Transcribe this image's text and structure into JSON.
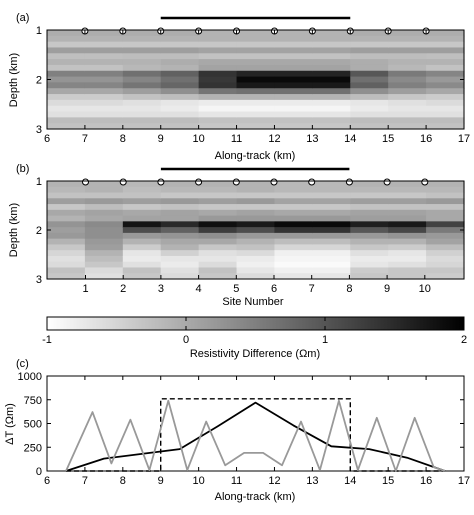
{
  "chart_data": [
    {
      "panel_label": "(a)",
      "type": "heatmap",
      "xlabel": "Along-track (km)",
      "ylabel": "Depth (km)",
      "xlim": [
        6,
        17
      ],
      "ylim": [
        3,
        1
      ],
      "xticks": [
        6,
        7,
        8,
        9,
        10,
        11,
        12,
        13,
        14,
        15,
        16,
        17
      ],
      "yticks": [
        1,
        2,
        3
      ],
      "site_markers_x": [
        7,
        8,
        9,
        10,
        11,
        12,
        13,
        14,
        15,
        16
      ],
      "bar_x": [
        9,
        14
      ],
      "heatmap_columns": [
        [
          0.32,
          0.3,
          0.22,
          0.38,
          0.25,
          0.3,
          0.24,
          0.5,
          0.42,
          0.48,
          0.34,
          0.2,
          0.14,
          0.1,
          0.12,
          0.26,
          0.24
        ],
        [
          0.32,
          0.3,
          0.22,
          0.38,
          0.25,
          0.3,
          0.24,
          0.5,
          0.42,
          0.48,
          0.34,
          0.2,
          0.14,
          0.1,
          0.12,
          0.26,
          0.24
        ],
        [
          0.32,
          0.3,
          0.22,
          0.38,
          0.26,
          0.3,
          0.28,
          0.56,
          0.48,
          0.54,
          0.38,
          0.24,
          0.12,
          0.1,
          0.12,
          0.26,
          0.24
        ],
        [
          0.32,
          0.3,
          0.22,
          0.38,
          0.26,
          0.32,
          0.3,
          0.62,
          0.56,
          0.6,
          0.44,
          0.26,
          0.1,
          0.08,
          0.12,
          0.26,
          0.24
        ],
        [
          0.3,
          0.3,
          0.22,
          0.36,
          0.24,
          0.34,
          0.36,
          0.8,
          0.78,
          0.8,
          0.54,
          0.3,
          0.08,
          0.04,
          0.1,
          0.24,
          0.22
        ],
        [
          0.3,
          0.3,
          0.22,
          0.36,
          0.24,
          0.34,
          0.36,
          0.86,
          0.96,
          0.9,
          0.56,
          0.3,
          0.08,
          0.04,
          0.1,
          0.24,
          0.22
        ],
        [
          0.3,
          0.3,
          0.22,
          0.36,
          0.24,
          0.34,
          0.36,
          0.86,
          0.96,
          0.9,
          0.56,
          0.3,
          0.08,
          0.04,
          0.1,
          0.24,
          0.22
        ],
        [
          0.3,
          0.3,
          0.22,
          0.36,
          0.24,
          0.34,
          0.36,
          0.86,
          0.96,
          0.9,
          0.56,
          0.3,
          0.08,
          0.04,
          0.1,
          0.24,
          0.22
        ],
        [
          0.32,
          0.3,
          0.22,
          0.38,
          0.26,
          0.32,
          0.32,
          0.66,
          0.56,
          0.62,
          0.44,
          0.26,
          0.1,
          0.08,
          0.12,
          0.26,
          0.24
        ],
        [
          0.32,
          0.3,
          0.22,
          0.38,
          0.26,
          0.3,
          0.28,
          0.52,
          0.46,
          0.5,
          0.38,
          0.22,
          0.12,
          0.1,
          0.12,
          0.26,
          0.24
        ],
        [
          0.32,
          0.3,
          0.22,
          0.38,
          0.25,
          0.3,
          0.24,
          0.48,
          0.4,
          0.46,
          0.34,
          0.2,
          0.14,
          0.1,
          0.12,
          0.26,
          0.24
        ]
      ]
    },
    {
      "panel_label": "(b)",
      "type": "heatmap",
      "xlabel": "Site Number",
      "ylabel": "Depth (km)",
      "ylim": [
        3,
        1
      ],
      "xticks": [
        1,
        2,
        3,
        4,
        5,
        6,
        7,
        8,
        9,
        10
      ],
      "yticks": [
        1,
        2,
        3
      ],
      "site_markers_x": [
        1,
        2,
        3,
        4,
        5,
        6,
        7,
        8,
        9,
        10
      ],
      "bar_x": [
        3,
        8
      ],
      "heatmap_columns": [
        [
          0.3,
          0.28,
          0.24,
          0.38,
          0.22,
          0.34,
          0.3,
          0.42,
          0.38,
          0.4,
          0.3,
          0.22,
          0.16,
          0.12,
          0.14,
          0.24,
          0.22
        ],
        [
          0.3,
          0.3,
          0.24,
          0.4,
          0.26,
          0.36,
          0.34,
          0.46,
          0.44,
          0.44,
          0.4,
          0.38,
          0.3,
          0.26,
          0.22,
          0.14,
          0.12
        ],
        [
          0.28,
          0.26,
          0.24,
          0.38,
          0.22,
          0.34,
          0.36,
          0.92,
          0.7,
          0.4,
          0.3,
          0.2,
          0.1,
          0.08,
          0.12,
          0.24,
          0.22
        ],
        [
          0.3,
          0.28,
          0.22,
          0.4,
          0.24,
          0.36,
          0.36,
          0.84,
          0.62,
          0.42,
          0.34,
          0.3,
          0.18,
          0.1,
          0.08,
          0.12,
          0.14
        ],
        [
          0.3,
          0.28,
          0.22,
          0.38,
          0.22,
          0.34,
          0.4,
          0.94,
          0.76,
          0.44,
          0.34,
          0.22,
          0.12,
          0.1,
          0.14,
          0.24,
          0.22
        ],
        [
          0.3,
          0.3,
          0.22,
          0.4,
          0.22,
          0.36,
          0.4,
          0.9,
          0.7,
          0.4,
          0.3,
          0.24,
          0.14,
          0.08,
          0.06,
          0.1,
          0.14
        ],
        [
          0.28,
          0.28,
          0.22,
          0.36,
          0.22,
          0.34,
          0.4,
          0.96,
          0.8,
          0.4,
          0.26,
          0.16,
          0.06,
          0.04,
          0.02,
          0.06,
          0.1
        ],
        [
          0.28,
          0.28,
          0.22,
          0.36,
          0.22,
          0.34,
          0.4,
          0.96,
          0.8,
          0.4,
          0.26,
          0.16,
          0.06,
          0.04,
          0.02,
          0.06,
          0.1
        ],
        [
          0.3,
          0.28,
          0.22,
          0.38,
          0.24,
          0.36,
          0.38,
          0.88,
          0.66,
          0.4,
          0.3,
          0.22,
          0.12,
          0.08,
          0.1,
          0.2,
          0.22
        ],
        [
          0.3,
          0.28,
          0.22,
          0.38,
          0.24,
          0.36,
          0.38,
          0.9,
          0.72,
          0.42,
          0.3,
          0.2,
          0.1,
          0.08,
          0.12,
          0.22,
          0.22
        ],
        [
          0.3,
          0.28,
          0.24,
          0.4,
          0.24,
          0.34,
          0.34,
          0.74,
          0.52,
          0.4,
          0.36,
          0.26,
          0.18,
          0.14,
          0.16,
          0.22,
          0.2
        ]
      ]
    },
    {
      "type": "colorbar",
      "label": "Resistivity Difference (Ωm)",
      "range": [
        -1,
        2
      ],
      "ticks": [
        -1,
        0,
        1,
        2
      ]
    },
    {
      "panel_label": "(c)",
      "type": "line",
      "xlabel": "Along-track (km)",
      "ylabel": "ΔT (Ωm)",
      "xlim": [
        6,
        17
      ],
      "ylim": [
        0,
        1000
      ],
      "xticks": [
        6,
        7,
        8,
        9,
        10,
        11,
        12,
        13,
        14,
        15,
        16,
        17
      ],
      "yticks": [
        0,
        250,
        500,
        750,
        1000
      ],
      "series": [
        {
          "color": "#000000",
          "dash": true,
          "width": 1.4,
          "x": [
            6.5,
            9.0,
            9.0,
            14.0,
            14.0,
            16.5
          ],
          "y": [
            0,
            0,
            760,
            760,
            0,
            0
          ]
        },
        {
          "color": "#000000",
          "dash": false,
          "width": 1.8,
          "x": [
            6.5,
            7.5,
            8.5,
            9.5,
            10.5,
            11.5,
            12.5,
            13.5,
            14.5,
            15.5,
            16.5
          ],
          "y": [
            0,
            130,
            180,
            230,
            470,
            720,
            480,
            260,
            230,
            140,
            0
          ]
        },
        {
          "color": "#999999",
          "dash": false,
          "width": 1.8,
          "x": [
            6.5,
            7.2,
            7.7,
            8.2,
            8.7,
            9.2,
            9.7,
            10.2,
            10.7,
            11.2,
            11.7,
            12.2,
            12.7,
            13.2,
            13.7,
            14.2,
            14.7,
            15.2,
            15.7,
            16.2,
            16.5
          ],
          "y": [
            0,
            620,
            80,
            540,
            10,
            740,
            10,
            520,
            60,
            190,
            190,
            60,
            520,
            10,
            740,
            10,
            560,
            0,
            560,
            40,
            0
          ]
        }
      ]
    }
  ]
}
